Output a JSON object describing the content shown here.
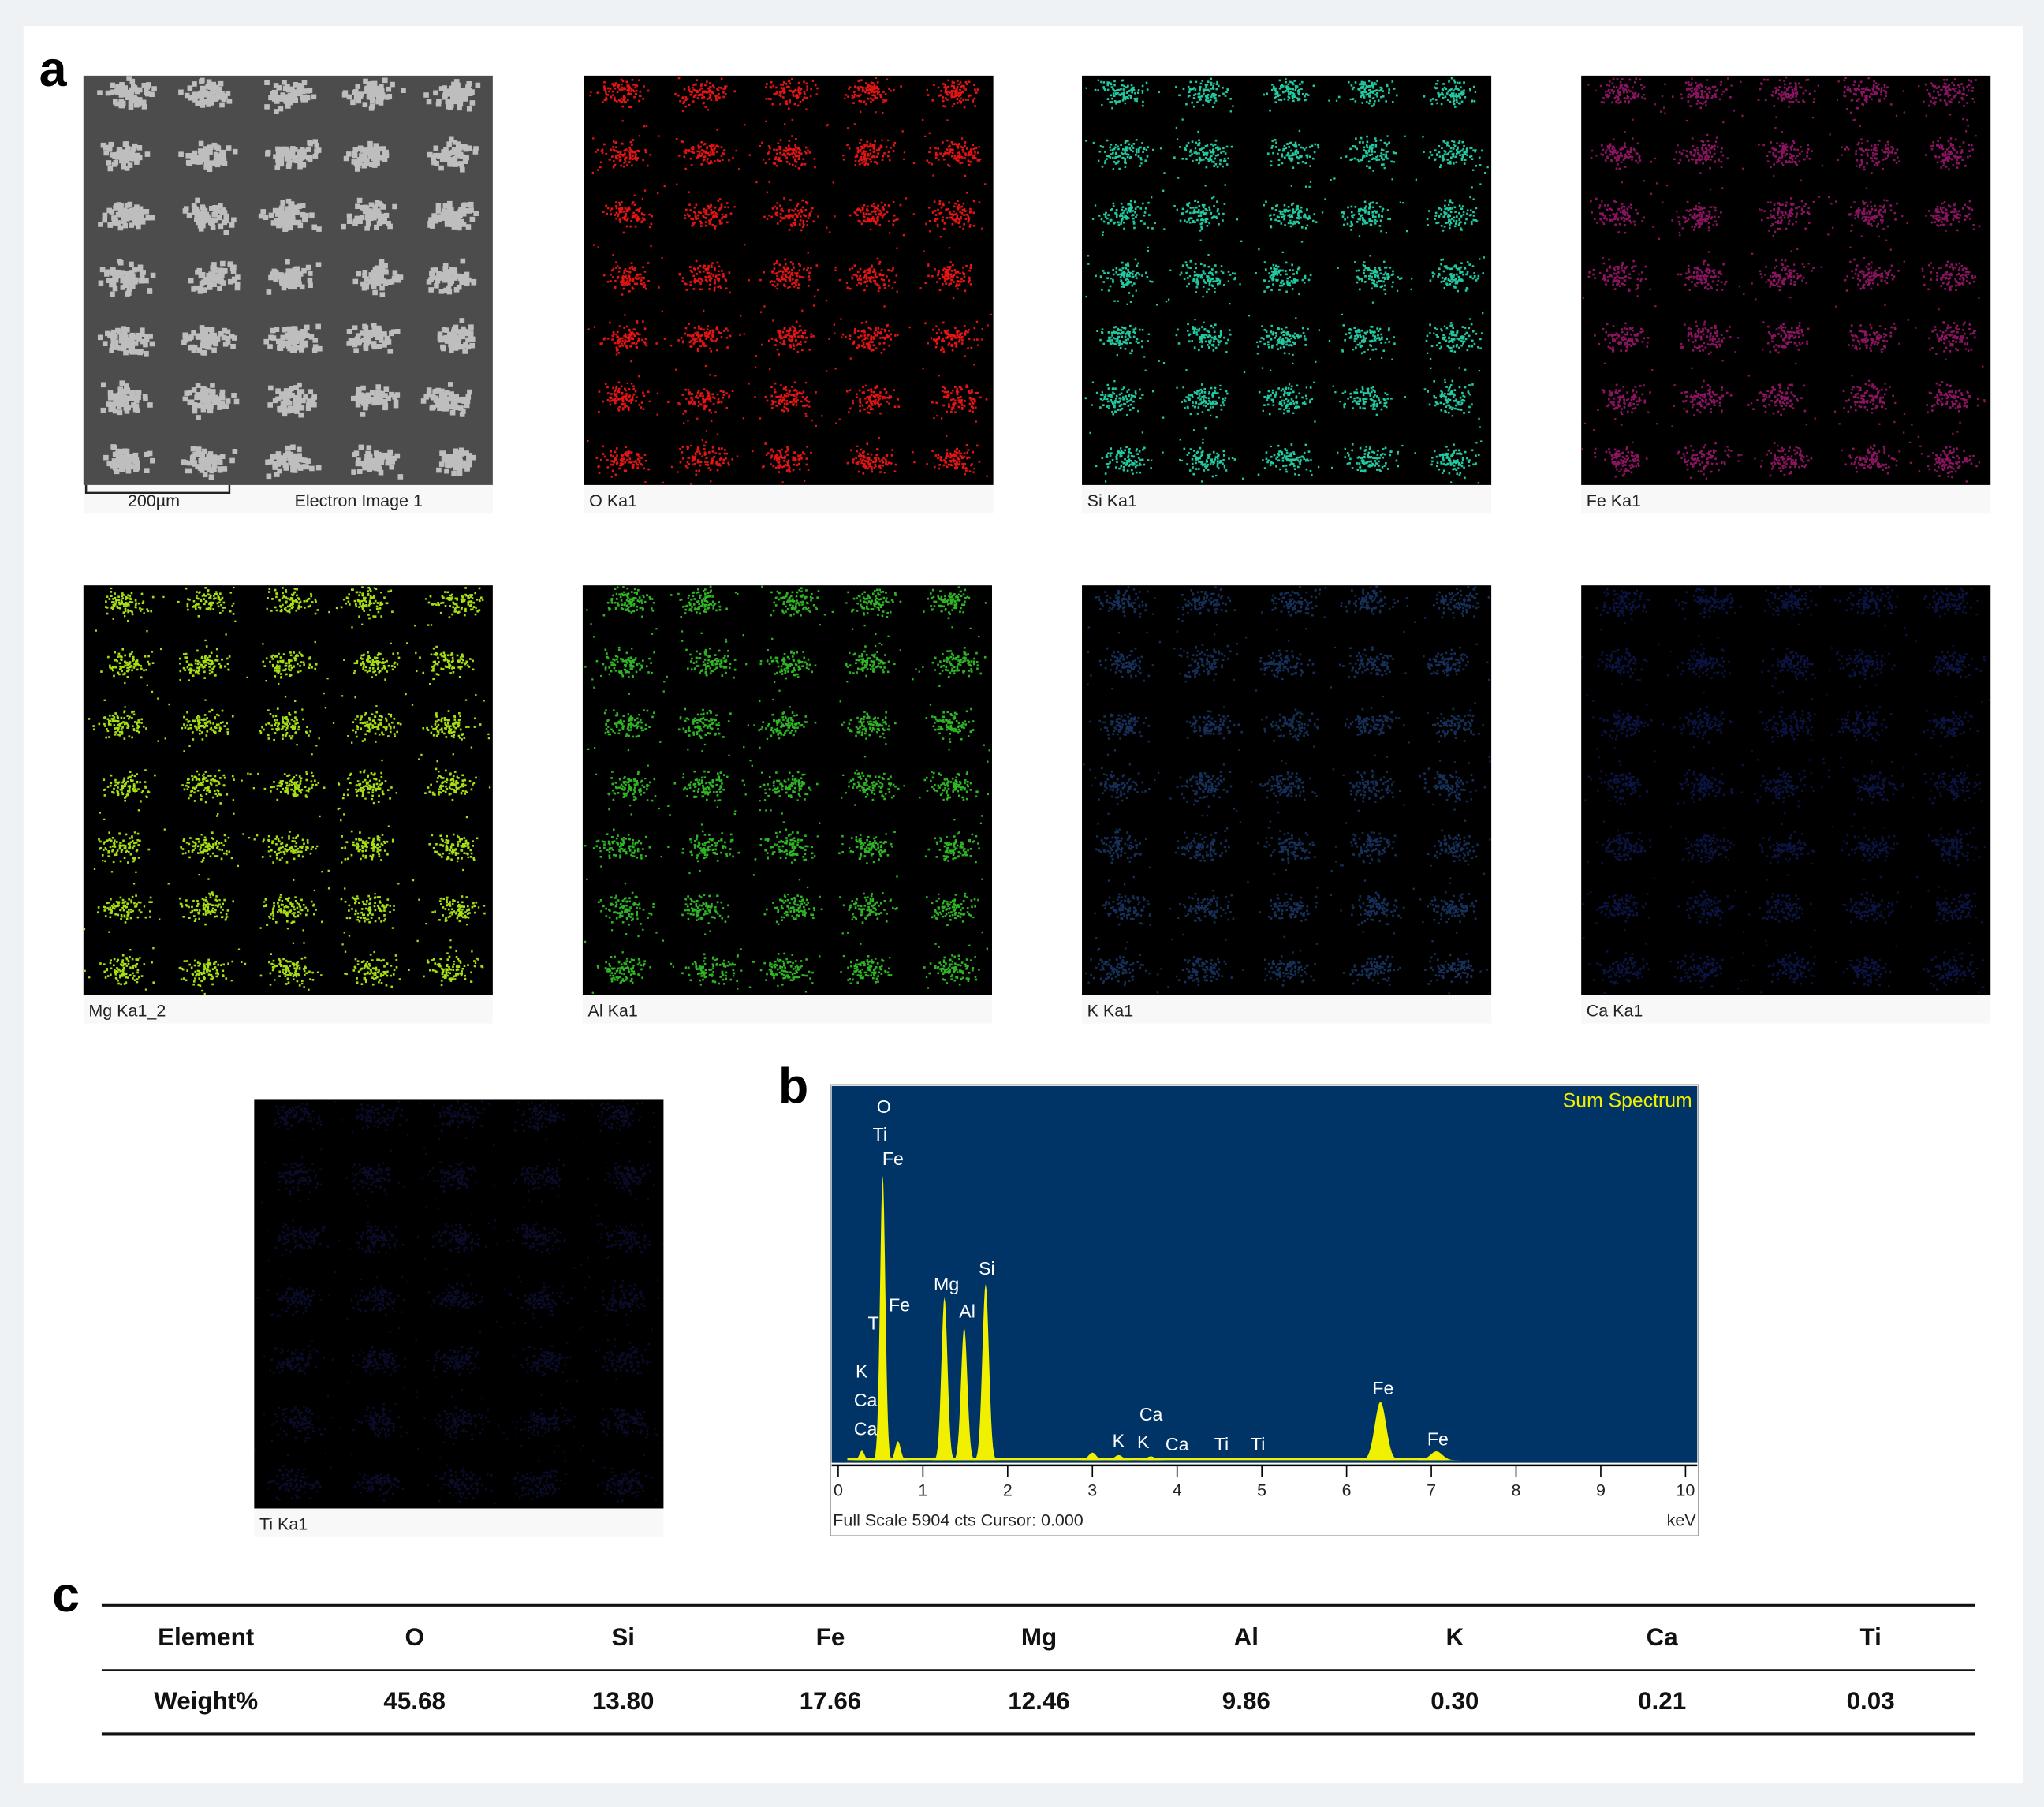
{
  "panel_labels": [
    "a",
    "b",
    "c"
  ],
  "scale_bar": "200µm",
  "maps": [
    {
      "label": "Electron Image 1",
      "color": "#d2d2d2"
    },
    {
      "label": "O Ka1",
      "color": "#e41414"
    },
    {
      "label": "Si Ka1",
      "color": "#22c8a0"
    },
    {
      "label": "Fe Ka1",
      "color": "#8a1460"
    },
    {
      "label": "Mg Ka1_2",
      "color": "#a6e014"
    },
    {
      "label": "Al Ka1",
      "color": "#2eb424"
    },
    {
      "label": "K Ka1",
      "color": "#16305a"
    },
    {
      "label": "Ca Ka1",
      "color": "#0c1444"
    },
    {
      "label": "Ti Ka1",
      "color": "#0a0c2a"
    }
  ],
  "chart_data": {
    "type": "spectrum",
    "title": "Sum Spectrum",
    "x": [
      0.28,
      0.525,
      0.705,
      1.254,
      1.487,
      1.74,
      3.0,
      3.31,
      3.69,
      6.4,
      7.06
    ],
    "values": [
      150,
      4490,
      300,
      2570,
      2100,
      2780,
      120,
      80,
      60,
      925,
      140
    ],
    "color": "#f0f000",
    "background": "#003366",
    "peak_labels": [
      "O",
      "Ti",
      "Fe",
      "T",
      "Fe",
      "K",
      "Ca",
      "Ca",
      "Mg",
      "Al",
      "Si",
      "Ca",
      "K",
      "K",
      "Ca",
      "Ti",
      "Ti",
      "Fe",
      "Fe"
    ],
    "xlim": [
      0,
      10
    ],
    "ylim": [
      0,
      5904
    ],
    "xticks": [
      0,
      1,
      2,
      3,
      4,
      5,
      6,
      7,
      8,
      9,
      10
    ],
    "footer": "Full Scale 5904 cts Cursor: 0.000",
    "xlabel": "keV"
  },
  "table": {
    "header": [
      "Element",
      "O",
      "Si",
      "Fe",
      "Mg",
      "Al",
      "K",
      "Ca",
      "Ti"
    ],
    "rows": [
      [
        "Weight%",
        "45.68",
        "13.80",
        "17.66",
        "12.46",
        "9.86",
        "0.30",
        "0.21",
        "0.03"
      ]
    ]
  }
}
